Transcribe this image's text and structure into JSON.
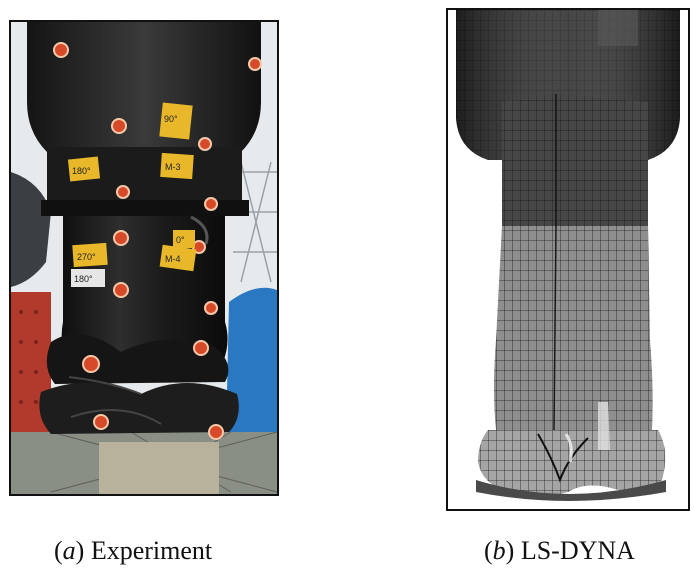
{
  "panels": [
    {
      "caption_open": "(",
      "caption_letter": "a",
      "caption_close": ")",
      "caption_text": " Experiment",
      "labels": [
        "90°",
        "180°",
        "M-3",
        "0°",
        "270°",
        "M-4",
        "180°"
      ],
      "colors": {
        "column": "#1a1a1a",
        "background_sky": "#e8ecef",
        "frame_red": "#b23a2c",
        "tarp_blue": "#2b78c2",
        "label_yellow": "#e8b82a",
        "marker": "#d64a2a"
      }
    },
    {
      "caption_open": "(",
      "caption_letter": "b",
      "caption_close": ")",
      "caption_text": " LS-DYNA",
      "colors": {
        "head": "#2d2d2d",
        "upper_body": "#4a4a4a",
        "lower_body": "#8f8f8f",
        "mesh_line": "#151515"
      }
    }
  ]
}
